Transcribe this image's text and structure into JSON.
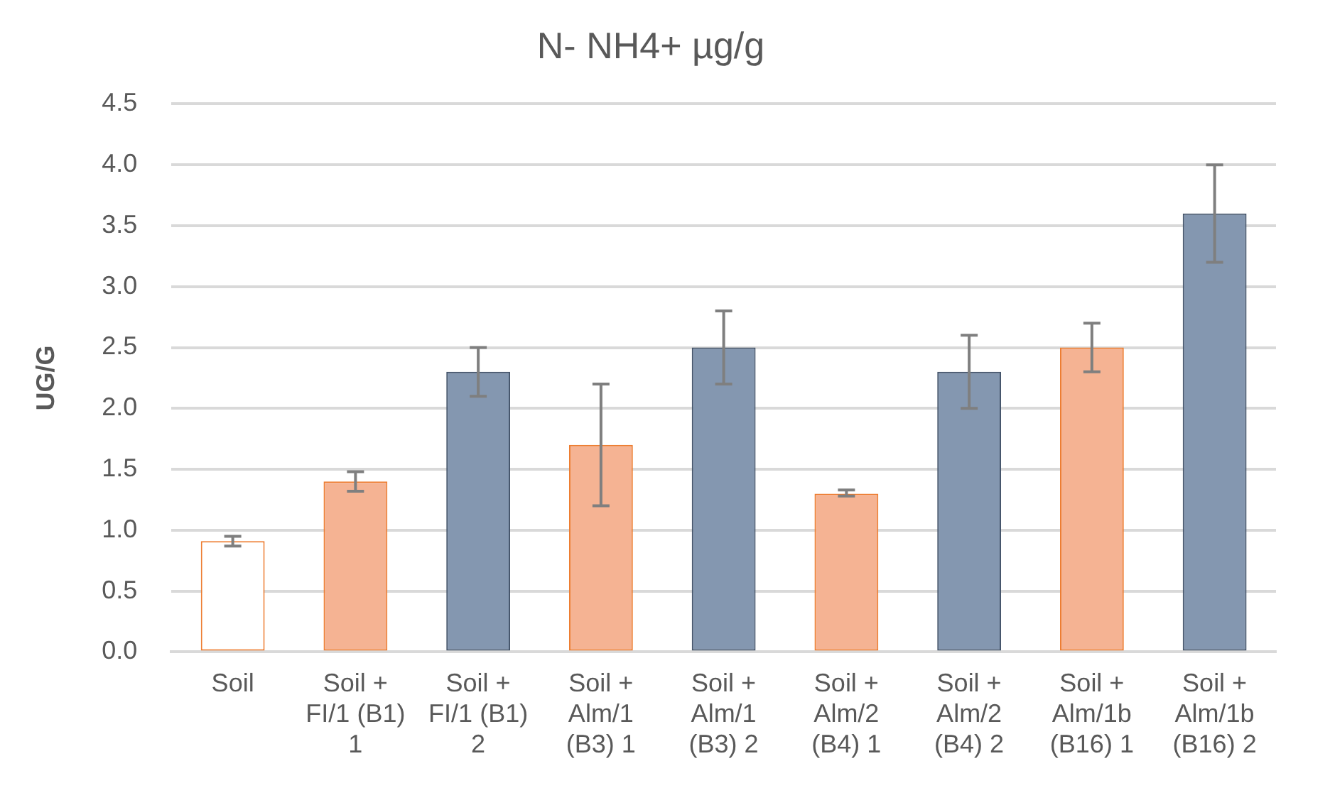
{
  "chart_data": {
    "type": "bar",
    "title": "N- NH4+ µg/g",
    "ylabel": "UG/G",
    "categories": [
      "Soil",
      "Soil + FI/1 (B1) 1",
      "Soil + FI/1 (B1) 2",
      "Soil + Alm/1 (B3) 1",
      "Soil + Alm/1 (B3) 2",
      "Soil + Alm/2 (B4) 1",
      "Soil + Alm/2 (B4) 2",
      "Soil + Alm/1b (B16) 1",
      "Soil + Alm/1b (B16) 2"
    ],
    "values": [
      0.91,
      1.4,
      2.3,
      1.7,
      2.5,
      1.3,
      2.3,
      2.5,
      3.6
    ],
    "errors": [
      [
        0.87,
        0.95
      ],
      [
        1.32,
        1.48
      ],
      [
        2.1,
        2.5
      ],
      [
        1.2,
        2.2
      ],
      [
        2.2,
        2.8
      ],
      [
        1.28,
        1.33
      ],
      [
        2.0,
        2.6
      ],
      [
        2.3,
        2.7
      ],
      [
        3.2,
        4.0
      ]
    ],
    "colors": [
      "#ffffff",
      "#f5b393",
      "#8497b0",
      "#f5b393",
      "#8497b0",
      "#f5b393",
      "#8497b0",
      "#f5b393",
      "#8497b0"
    ],
    "ylim": [
      0,
      4.5
    ],
    "yticks": [
      {
        "value": 0,
        "label": "0.0"
      },
      0.5,
      {
        "value": 1,
        "label": "1.0"
      },
      1.5,
      {
        "value": 2,
        "label": "2.0"
      },
      2.5,
      {
        "value": 3,
        "label": "3.0"
      },
      3.5,
      {
        "value": 4,
        "label": "4.0"
      },
      4.5
    ],
    "grid": "y",
    "legend": false
  }
}
